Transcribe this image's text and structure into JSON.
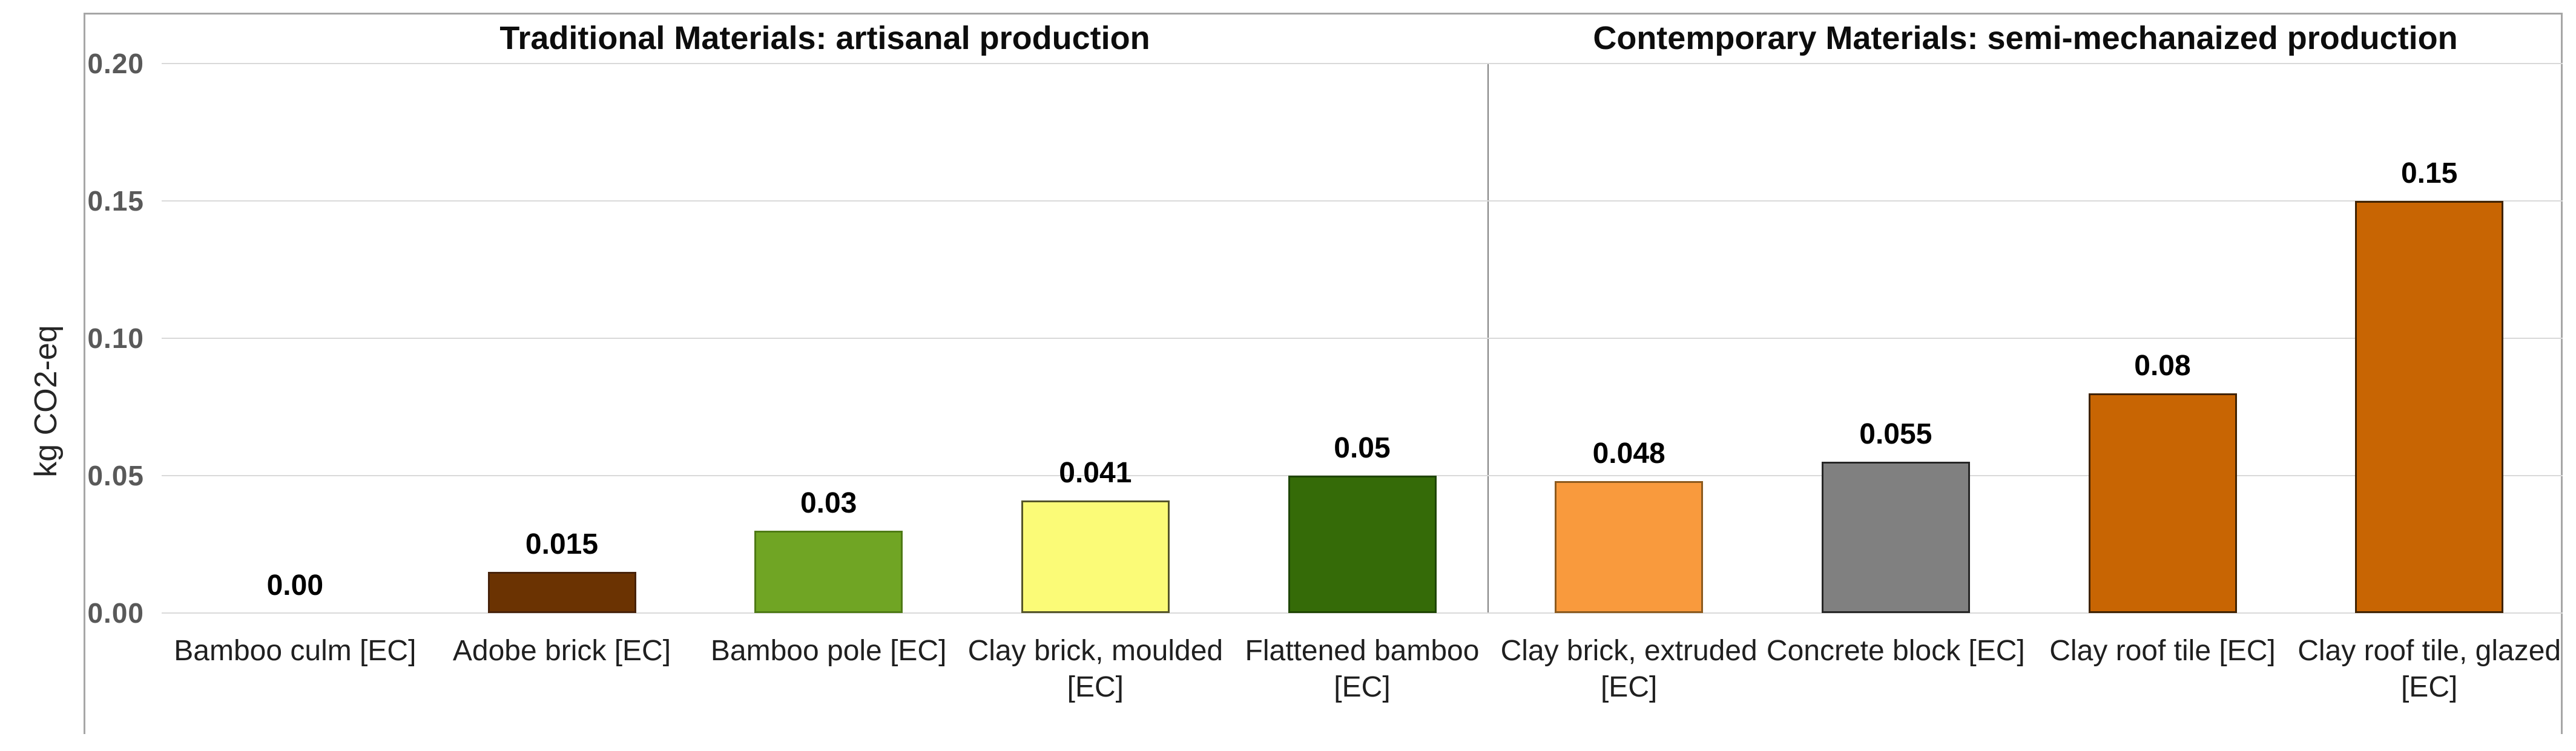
{
  "chart_data": {
    "type": "bar",
    "ylabel": "kg CO2-eq",
    "ylim": [
      0,
      0.2
    ],
    "ytick_labels": [
      "0.20",
      "0.15",
      "0.10",
      "0.05",
      "0.00"
    ],
    "grid": true,
    "legend": false,
    "sections": [
      {
        "id": "traditional",
        "title": "Traditional Materials: artisanal production"
      },
      {
        "id": "contemporary",
        "title": "Contemporary Materials: semi-mechanaized production"
      }
    ],
    "bars": [
      {
        "section": "traditional",
        "category": "Bamboo culm [EC]",
        "lines": [
          "Bamboo culm [EC]"
        ],
        "value": 0.0,
        "label": "0.00",
        "fill": null,
        "border": null
      },
      {
        "section": "traditional",
        "category": "Adobe brick [EC]",
        "lines": [
          "Adobe brick [EC]"
        ],
        "value": 0.015,
        "label": "0.015",
        "fill": "#6b3302",
        "border": "#47220a"
      },
      {
        "section": "traditional",
        "category": "Bamboo pole [EC]",
        "lines": [
          "Bamboo pole [EC]"
        ],
        "value": 0.03,
        "label": "0.03",
        "fill": "#70a524",
        "border": "#4e7a15"
      },
      {
        "section": "traditional",
        "category": "Clay brick, moulded [EC]",
        "lines": [
          "Clay brick, moulded",
          "[EC]"
        ],
        "value": 0.041,
        "label": "0.041",
        "fill": "#fbfb77",
        "border": "#55552a"
      },
      {
        "section": "traditional",
        "category": "Flattened bamboo [EC]",
        "lines": [
          "Flattened bamboo",
          "[EC]"
        ],
        "value": 0.05,
        "label": "0.05",
        "fill": "#356b08",
        "border": "#1e4503"
      },
      {
        "section": "contemporary",
        "category": "Clay brick, extruded [EC]",
        "lines": [
          "Clay brick, extruded",
          "[EC]"
        ],
        "value": 0.048,
        "label": "0.048",
        "fill": "#f99a3d",
        "border": "#8c5a1e"
      },
      {
        "section": "contemporary",
        "category": "Concrete block [EC]",
        "lines": [
          "Concrete block [EC]"
        ],
        "value": 0.055,
        "label": "0.055",
        "fill": "#808080",
        "border": "#262626"
      },
      {
        "section": "contemporary",
        "category": "Clay roof tile [EC]",
        "lines": [
          "Clay roof tile [EC]"
        ],
        "value": 0.08,
        "label": "0.08",
        "fill": "#c86503",
        "border": "#3f2202"
      },
      {
        "section": "contemporary",
        "category": "Clay roof tile, glazed [EC]",
        "lines": [
          "Clay roof tile, glazed",
          "[EC]"
        ],
        "value": 0.15,
        "label": "0.15",
        "fill": "#c86503",
        "border": "#3f2202"
      }
    ],
    "colors": {
      "gridline": "#d9d9d9",
      "chart_border": "#a6a6a6",
      "divider": "#7f7f7f",
      "tick_text": "#595959",
      "label_text": "#1f1f1f"
    }
  }
}
